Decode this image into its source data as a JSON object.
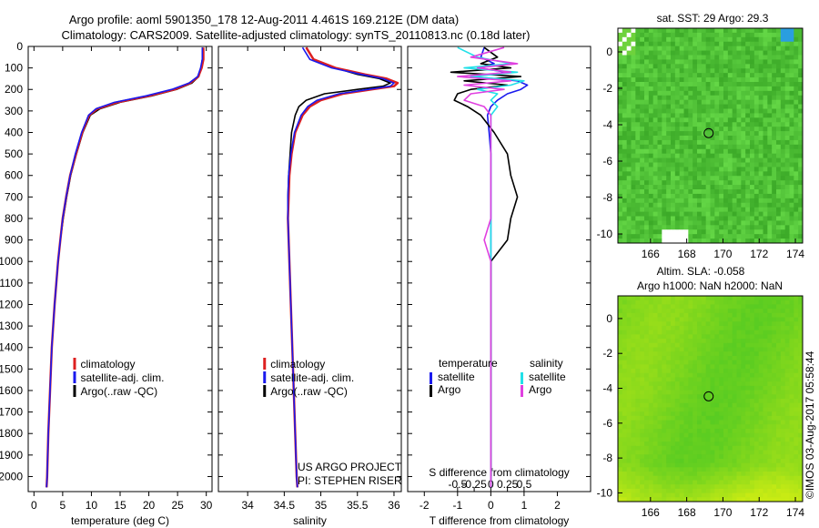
{
  "title_line1": "Argo profile: aoml 5901350_178 12-Aug-2011 4.461S 169.212E (DM data)",
  "title_line2": "Climatology: CARS2009. Satellite-adjusted climatology: synTS_20110813.nc (0.18d later)",
  "depth_ticks": [
    "0",
    "100",
    "200",
    "300",
    "400",
    "500",
    "600",
    "700",
    "800",
    "900",
    "1000",
    "1100",
    "1200",
    "1300",
    "1400",
    "1500",
    "1600",
    "1700",
    "1800",
    "1900",
    "2000"
  ],
  "colors": {
    "climatology": "#dd2020",
    "satellite": "#1a1aee",
    "argo": "#000000",
    "sat_salinity": "#22e0e8",
    "argo_salinity": "#e040e0"
  },
  "chart_data": [
    {
      "type": "line",
      "panel": "temperature",
      "xlabel": "temperature (deg C)",
      "ylim": [
        2070,
        0
      ],
      "xlim": [
        -1,
        31
      ],
      "xticks": [
        0,
        5,
        10,
        15,
        20,
        25,
        30
      ],
      "legend": [
        "climatology",
        "satellite-adj. clim.",
        "Argo(..raw -QC)"
      ],
      "depth": [
        5,
        60,
        100,
        140,
        170,
        200,
        230,
        260,
        290,
        320,
        400,
        500,
        600,
        700,
        800,
        900,
        1000,
        1200,
        1400,
        1600,
        1800,
        2000,
        2050
      ],
      "series": [
        {
          "name": "climatology",
          "values": [
            29.5,
            29.5,
            29.2,
            28.6,
            27.2,
            24.5,
            20.0,
            14.5,
            11.0,
            9.6,
            8.4,
            7.3,
            6.3,
            5.6,
            5.0,
            4.6,
            4.2,
            3.6,
            3.1,
            2.8,
            2.5,
            2.3,
            2.2
          ]
        },
        {
          "name": "satellite-adj. clim.",
          "values": [
            29.3,
            29.3,
            29.0,
            28.5,
            27.0,
            24.0,
            19.5,
            14.0,
            10.8,
            9.5,
            8.3,
            7.2,
            6.3,
            5.6,
            5.0,
            4.6,
            4.2,
            3.6,
            3.1,
            2.8,
            2.5,
            2.3,
            2.2
          ]
        },
        {
          "name": "Argo(..raw -QC)",
          "values": [
            29.3,
            29.3,
            29.1,
            28.7,
            27.5,
            24.8,
            20.5,
            15.0,
            11.5,
            9.8,
            8.5,
            7.4,
            6.4,
            5.7,
            5.1,
            4.6,
            4.2,
            3.6,
            3.1,
            2.8,
            2.5,
            2.3,
            2.2
          ]
        }
      ]
    },
    {
      "type": "line",
      "panel": "salinity",
      "xlabel": "salinity",
      "ylim": [
        2070,
        0
      ],
      "xlim": [
        33.6,
        36.1
      ],
      "xticks": [
        34,
        34.5,
        35,
        35.5,
        36
      ],
      "legend": [
        "climatology",
        "satellite-adj. clim.",
        "Argo(..raw -QC)"
      ],
      "notes": [
        "US ARGO PROJECT",
        "PI: STEPHEN RISER"
      ],
      "depth": [
        5,
        60,
        100,
        130,
        150,
        170,
        185,
        200,
        220,
        250,
        280,
        320,
        400,
        500,
        600,
        700,
        800,
        900,
        1000,
        1200,
        1400,
        1600,
        1800,
        2000,
        2050
      ],
      "series": [
        {
          "name": "climatology",
          "values": [
            34.8,
            34.9,
            35.2,
            35.6,
            35.9,
            36.05,
            36.0,
            35.7,
            35.3,
            35.0,
            34.85,
            34.75,
            34.65,
            34.6,
            34.57,
            34.56,
            34.55,
            34.56,
            34.57,
            34.59,
            34.61,
            34.63,
            34.65,
            34.67,
            34.68
          ]
        },
        {
          "name": "satellite-adj. clim.",
          "values": [
            34.75,
            34.85,
            35.15,
            35.55,
            35.85,
            36.0,
            35.95,
            35.65,
            35.25,
            34.95,
            34.82,
            34.73,
            34.64,
            34.59,
            34.56,
            34.55,
            34.55,
            34.56,
            34.57,
            34.59,
            34.61,
            34.63,
            34.65,
            34.67,
            34.68
          ]
        },
        {
          "name": "Argo(..raw -QC)",
          "values": [
            34.8,
            34.9,
            35.2,
            35.5,
            35.8,
            35.95,
            35.85,
            35.5,
            35.05,
            34.8,
            34.7,
            34.65,
            34.6,
            34.58,
            34.56,
            34.55,
            34.55,
            34.56,
            34.57,
            34.59,
            34.61,
            34.63,
            34.65,
            34.67,
            34.68
          ]
        }
      ]
    },
    {
      "type": "line",
      "panel": "difference",
      "xlabel": "T difference from climatology",
      "x2label": "S difference from climatology",
      "ylim": [
        2070,
        0
      ],
      "xlim": [
        -2.5,
        3
      ],
      "xticks": [
        -2,
        -1,
        0,
        1,
        2
      ],
      "x2ticks": [
        "-0.5",
        "-0.25",
        "0",
        "0.25",
        "0.5"
      ],
      "legend_temperature": [
        "temperature",
        "satellite",
        "Argo"
      ],
      "legend_salinity": [
        "salinity",
        "satellite",
        "Argo"
      ],
      "depth": [
        5,
        50,
        80,
        100,
        120,
        140,
        160,
        180,
        200,
        220,
        250,
        280,
        320,
        400,
        500,
        600,
        700,
        800,
        900,
        1000,
        1200,
        1500,
        1800,
        2050
      ],
      "series": [
        {
          "name": "temperature satellite",
          "values": [
            -0.2,
            -0.3,
            0.1,
            -0.4,
            0.5,
            -0.6,
            0.8,
            1.1,
            0.9,
            0.5,
            0.2,
            0.0,
            -0.1,
            -0.05,
            0,
            0,
            0,
            0,
            0,
            0,
            0,
            0,
            0,
            0
          ]
        },
        {
          "name": "temperature Argo",
          "values": [
            -0.2,
            0.2,
            -0.3,
            0.6,
            -1.2,
            0.9,
            -0.8,
            0.5,
            -0.6,
            -1.0,
            -1.1,
            -0.7,
            -0.3,
            0.1,
            0.5,
            0.6,
            0.8,
            0.6,
            0.5,
            0,
            0,
            0,
            0,
            0
          ]
        },
        {
          "name": "salinity satellite",
          "values": [
            -0.5,
            -0.2,
            0.3,
            -0.4,
            0.4,
            -0.3,
            0.5,
            0.3,
            -0.2,
            0.1,
            0.0,
            0.1,
            0.0,
            0,
            0,
            0,
            0,
            0,
            0,
            0,
            0,
            0,
            0,
            0
          ]
        },
        {
          "name": "salinity Argo",
          "values": [
            0.2,
            -0.3,
            0.4,
            -0.2,
            0.3,
            -0.5,
            0.3,
            -0.4,
            0.2,
            -0.3,
            -0.4,
            -0.1,
            0.0,
            0,
            0,
            0,
            0,
            0,
            -0.1,
            0,
            0,
            0,
            0,
            0
          ]
        }
      ]
    },
    {
      "type": "heatmap",
      "panel": "sst_map",
      "title": "sat. SST: 29 Argo: 29.3",
      "xticks": [
        "166",
        "168",
        "170",
        "172",
        "174"
      ],
      "yticks": [
        "0",
        "-2",
        "-4",
        "-6",
        "-8",
        "-10"
      ],
      "xlim": [
        164.2,
        174.4
      ],
      "ylim": [
        -10.5,
        1.3
      ],
      "profile_location": [
        169.212,
        -4.461
      ]
    },
    {
      "type": "heatmap",
      "panel": "sla_map",
      "title": "Altim. SLA: -0.058",
      "subtitle": "Argo h1000: NaN h2000: NaN",
      "xticks": [
        "166",
        "168",
        "170",
        "172",
        "174"
      ],
      "yticks": [
        "0",
        "-2",
        "-4",
        "-6",
        "-8",
        "-10"
      ],
      "xlim": [
        164.2,
        174.4
      ],
      "ylim": [
        -10.5,
        1.3
      ],
      "profile_location": [
        169.212,
        -4.461
      ]
    }
  ],
  "credit": "©IMOS 03-Aug-2017 05:58:44"
}
